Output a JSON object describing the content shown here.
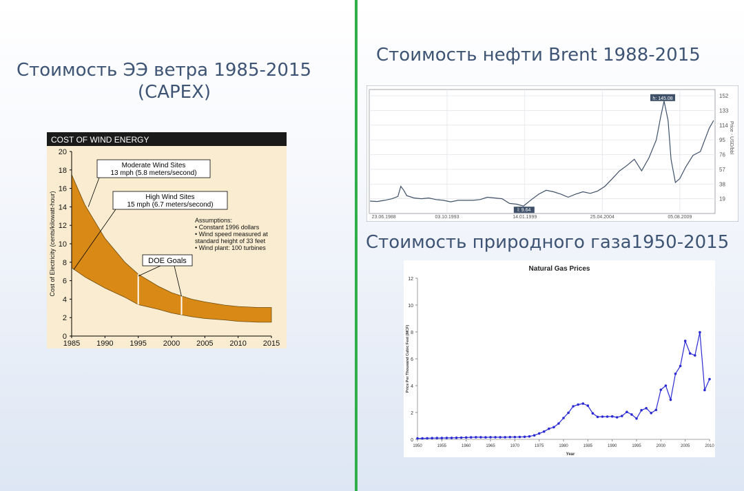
{
  "slide": {
    "wind_title_line1": "Стоимость ЭЭ ветра 1985-2015",
    "wind_title_line2": "(CAPEX)",
    "brent_title": "Стоимость нефти Brent 1988-2015",
    "gas_title": "Стоимость природного газа1950-2015",
    "colors": {
      "divider": "#2fae4a",
      "title": "#3e5474"
    }
  },
  "chart_data": [
    {
      "type": "area",
      "title": "COST OF WIND ENERGY",
      "ylabel": "Cost of Electricity (cents/kilowatt-hour)",
      "xlabel": "",
      "x": [
        1985,
        1987,
        1990,
        1993,
        1995,
        1998,
        2000,
        2003,
        2005,
        2008,
        2010,
        2013,
        2015
      ],
      "upper": [
        17.5,
        14.2,
        10.6,
        8.0,
        6.7,
        5.4,
        4.7,
        4.0,
        3.7,
        3.35,
        3.2,
        3.1,
        3.1
      ],
      "lower": [
        7.4,
        6.4,
        5.2,
        4.2,
        3.4,
        2.9,
        2.5,
        2.1,
        1.9,
        1.75,
        1.6,
        1.5,
        1.5
      ],
      "xlim": [
        1985,
        2015
      ],
      "ylim": [
        0,
        20
      ],
      "xticks": [
        "1985",
        "1990",
        "1995",
        "2000",
        "2005",
        "2010",
        "2015"
      ],
      "yticks": [
        "0",
        "2",
        "4",
        "6",
        "8",
        "10",
        "12",
        "14",
        "16",
        "18",
        "20"
      ],
      "goal_lines_x": [
        1995,
        2001.5
      ],
      "annotations": {
        "moderate_line1": "Moderate Wind Sites",
        "moderate_line2": "13 mph (5.8 meters/second)",
        "high_line1": "High Wind Sites",
        "high_line2": "15 mph (6.7 meters/second)",
        "assumptions": [
          "Assumptions:",
          "• Constant 1996 dollars",
          "• Wind speed measured at",
          "  standard height of 33 feet",
          "• Wind plant: 100 turbines"
        ],
        "doe_goals": "DOE Goals"
      },
      "colors": {
        "fill": "#d98a16",
        "background": "#f9ecd0",
        "header": "#1a1a1a"
      }
    },
    {
      "type": "line",
      "series_name": "Price",
      "ylabel": "Price - USD/bbl",
      "yticks": [
        "152",
        "133",
        "114",
        "95",
        "76",
        "57",
        "38",
        "19"
      ],
      "ylim": [
        0,
        160
      ],
      "xlim": [
        1988.45,
        2012
      ],
      "xticks": [
        "23.06.1988",
        "03.10.1993",
        "14.01.1999",
        "25.04.2004",
        "05.08.2009"
      ],
      "xtick_values": [
        1988.48,
        1993.75,
        1999.04,
        2004.32,
        2009.6
      ],
      "max_label": "h: 145.08",
      "min_label": "l: 9.64",
      "x": [
        1988.5,
        1989,
        1989.5,
        1990,
        1990.4,
        1990.6,
        1990.8,
        1991,
        1991.5,
        1992,
        1992.5,
        1993,
        1993.5,
        1994,
        1994.5,
        1995,
        1995.5,
        1996,
        1996.5,
        1997,
        1997.5,
        1998,
        1998.5,
        1998.95,
        1999.5,
        2000,
        2000.5,
        2001,
        2001.5,
        2002,
        2002.5,
        2003,
        2003.5,
        2004,
        2004.5,
        2005,
        2005.5,
        2006,
        2006.5,
        2007,
        2007.5,
        2008,
        2008.3,
        2008.53,
        2008.8,
        2009,
        2009.3,
        2009.6,
        2010,
        2010.5,
        2011,
        2011.3,
        2011.6,
        2011.9
      ],
      "y": [
        16,
        15.5,
        17,
        19,
        22,
        35,
        30,
        23,
        20,
        19,
        20,
        18,
        17,
        15,
        17,
        17,
        17,
        18,
        21,
        20,
        19,
        13,
        12,
        9.64,
        18,
        25,
        30,
        28,
        25,
        21,
        25,
        28,
        26,
        29,
        35,
        45,
        55,
        62,
        70,
        55,
        72,
        95,
        125,
        145.08,
        120,
        70,
        40,
        45,
        60,
        75,
        80,
        95,
        110,
        120
      ],
      "colors": {
        "line": "#3d5068"
      }
    },
    {
      "type": "line",
      "title": "Natural Gas Prices",
      "xlabel": "Year",
      "ylabel": "Price Per Thousand Cubic Feet (MCF)",
      "xlim": [
        1950,
        2010
      ],
      "ylim": [
        0,
        12
      ],
      "xticks": [
        "1950",
        "1955",
        "1960",
        "1965",
        "1970",
        "1975",
        "1980",
        "1985",
        "1990",
        "1995",
        "2000",
        "2005",
        "2010"
      ],
      "yticks": [
        "0",
        "2",
        "4",
        "6",
        "8",
        "10",
        "12"
      ],
      "x": [
        1950,
        1951,
        1952,
        1953,
        1954,
        1955,
        1956,
        1957,
        1958,
        1959,
        1960,
        1961,
        1962,
        1963,
        1964,
        1965,
        1966,
        1967,
        1968,
        1969,
        1970,
        1971,
        1972,
        1973,
        1974,
        1975,
        1976,
        1977,
        1978,
        1979,
        1980,
        1981,
        1982,
        1983,
        1984,
        1985,
        1986,
        1987,
        1988,
        1989,
        1990,
        1991,
        1992,
        1993,
        1994,
        1995,
        1996,
        1997,
        1998,
        1999,
        2000,
        2001,
        2002,
        2003,
        2004,
        2005,
        2006,
        2007,
        2008,
        2009,
        2010
      ],
      "y": [
        0.07,
        0.07,
        0.08,
        0.09,
        0.1,
        0.1,
        0.11,
        0.11,
        0.12,
        0.13,
        0.14,
        0.15,
        0.16,
        0.16,
        0.15,
        0.16,
        0.16,
        0.16,
        0.16,
        0.17,
        0.17,
        0.18,
        0.19,
        0.22,
        0.3,
        0.44,
        0.58,
        0.79,
        0.91,
        1.18,
        1.59,
        1.98,
        2.46,
        2.59,
        2.66,
        2.51,
        1.94,
        1.67,
        1.69,
        1.69,
        1.71,
        1.64,
        1.74,
        2.04,
        1.85,
        1.55,
        2.17,
        2.32,
        1.96,
        2.19,
        3.69,
        4.0,
        2.95,
        4.88,
        5.46,
        7.33,
        6.4,
        6.25,
        7.97,
        3.67,
        4.48
      ],
      "colors": {
        "line": "#2b2bd6",
        "marker": "#2b2bd6"
      }
    }
  ]
}
